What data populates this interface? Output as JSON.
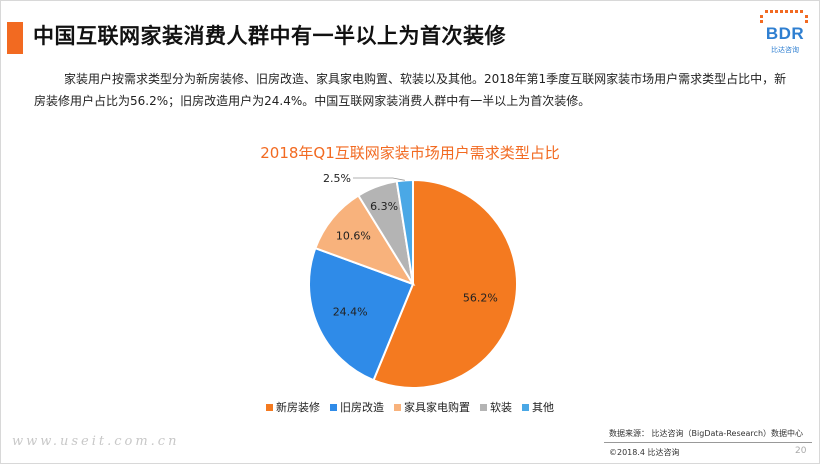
{
  "header": {
    "title": "中国互联网家装消费人群中有一半以上为首次装修"
  },
  "logo": {
    "text": "BDR",
    "subtext": "比达咨询"
  },
  "description": "家装用户按需求类型分为新房装修、旧房改造、家具家电购置、软装以及其他。2018年第1季度互联网家装市场用户需求类型占比中，新房装修用户占比为56.2%；旧房改造用户为24.4%。中国互联网家装消费人群中有一半以上为首次装修。",
  "chart_data": {
    "type": "pie",
    "title": "2018年Q1互联网家装市场用户需求类型占比",
    "categories": [
      "新房装修",
      "旧房改造",
      "家具家电购置",
      "软装",
      "其他"
    ],
    "values": [
      56.2,
      24.4,
      10.6,
      6.3,
      2.5
    ],
    "labels": [
      "56.2%",
      "24.4%",
      "10.6%",
      "6.3%",
      "2.5%"
    ],
    "colors": [
      "#f47a20",
      "#2f8be8",
      "#f8b27c",
      "#b4b4b4",
      "#4aa8e6"
    ],
    "legend_position": "bottom",
    "start": "12 o'clock, clockwise"
  },
  "footer": {
    "source": "数据来源：  比达咨询（BigData-Research）数据中心",
    "copyright": "©2018.4   比达咨询",
    "page": "20",
    "watermark": "www.useit.com.cn"
  }
}
